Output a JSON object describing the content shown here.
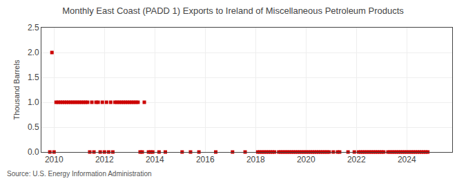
{
  "chart_data": {
    "type": "scatter",
    "title": "Monthly East Coast (PADD 1) Exports to Ireland of Miscellaneous Petroleum Products",
    "ylabel": "Thousand Barrels",
    "annotations": [
      "Source: U.S. Energy Information Administration"
    ],
    "color": "#cc0000",
    "marker": "square",
    "grid": true,
    "xlim": [
      2009.5,
      2025.8
    ],
    "xticks": [
      2010,
      2012,
      2014,
      2016,
      2018,
      2020,
      2022,
      2024
    ],
    "ylim": [
      0,
      2.5
    ],
    "yticks": [
      {
        "value": 0.0,
        "label": "0.0"
      },
      0.5,
      {
        "value": 1.0,
        "label": "1.0"
      },
      1.5,
      {
        "value": 2.0,
        "label": "2.0"
      },
      2.5
    ],
    "x": [
      2009.917,
      2010.083,
      2010.167,
      2010.25,
      2010.333,
      2010.417,
      2010.5,
      2010.583,
      2010.667,
      2010.75,
      2010.833,
      2010.917,
      2011.0,
      2011.083,
      2011.167,
      2011.25,
      2011.333,
      2011.5,
      2011.667,
      2011.75,
      2011.917,
      2012.083,
      2012.25,
      2012.417,
      2012.5,
      2012.583,
      2012.667,
      2012.75,
      2012.833,
      2012.917,
      2013.0,
      2013.083,
      2013.167,
      2013.25,
      2013.333,
      2013.583,
      2009.833,
      2010.0,
      2011.417,
      2011.583,
      2011.833,
      2012.0,
      2012.167,
      2012.333,
      2013.417,
      2013.5,
      2013.75,
      2013.833,
      2013.917,
      2014.167,
      2014.417,
      2015.083,
      2015.417,
      2015.75,
      2016.417,
      2017.083,
      2017.583,
      2018.083,
      2018.167,
      2018.25,
      2018.333,
      2018.417,
      2018.5,
      2018.583,
      2018.667,
      2018.75,
      2018.917,
      2019.0,
      2019.083,
      2019.167,
      2019.25,
      2019.333,
      2019.417,
      2019.5,
      2019.583,
      2019.667,
      2019.75,
      2019.833,
      2019.917,
      2020.0,
      2020.083,
      2020.167,
      2020.25,
      2020.333,
      2020.417,
      2020.5,
      2020.583,
      2020.667,
      2020.75,
      2020.833,
      2020.917,
      2021.083,
      2021.25,
      2021.333,
      2021.667,
      2021.917,
      2022.083,
      2022.167,
      2022.25,
      2022.333,
      2022.417,
      2022.5,
      2022.583,
      2022.667,
      2022.75,
      2022.833,
      2022.917,
      2023.0,
      2023.083,
      2023.25,
      2023.333,
      2023.417,
      2023.5,
      2023.583,
      2023.667,
      2023.75,
      2023.833,
      2023.917,
      2024.0,
      2024.083,
      2024.167,
      2024.25,
      2024.333,
      2024.417,
      2024.5,
      2024.583,
      2024.667,
      2024.75,
      2024.833
    ],
    "values": [
      2.0,
      1.0,
      1.0,
      1.0,
      1.0,
      1.0,
      1.0,
      1.0,
      1.0,
      1.0,
      1.0,
      1.0,
      1.0,
      1.0,
      1.0,
      1.0,
      1.0,
      1.0,
      1.0,
      1.0,
      1.0,
      1.0,
      1.0,
      1.0,
      1.0,
      1.0,
      1.0,
      1.0,
      1.0,
      1.0,
      1.0,
      1.0,
      1.0,
      1.0,
      1.0,
      1.0,
      0.0,
      0.0,
      0.0,
      0.0,
      0.0,
      0.0,
      0.0,
      0.0,
      0.0,
      0.0,
      0.0,
      0.0,
      0.0,
      0.0,
      0.0,
      0.0,
      0.0,
      0.0,
      0.0,
      0.0,
      0.0,
      0.0,
      0.0,
      0.0,
      0.0,
      0.0,
      0.0,
      0.0,
      0.0,
      0.0,
      0.0,
      0.0,
      0.0,
      0.0,
      0.0,
      0.0,
      0.0,
      0.0,
      0.0,
      0.0,
      0.0,
      0.0,
      0.0,
      0.0,
      0.0,
      0.0,
      0.0,
      0.0,
      0.0,
      0.0,
      0.0,
      0.0,
      0.0,
      0.0,
      0.0,
      0.0,
      0.0,
      0.0,
      0.0,
      0.0,
      0.0,
      0.0,
      0.0,
      0.0,
      0.0,
      0.0,
      0.0,
      0.0,
      0.0,
      0.0,
      0.0,
      0.0,
      0.0,
      0.0,
      0.0,
      0.0,
      0.0,
      0.0,
      0.0,
      0.0,
      0.0,
      0.0,
      0.0,
      0.0,
      0.0,
      0.0,
      0.0,
      0.0,
      0.0,
      0.0,
      0.0,
      0.0,
      0.0
    ]
  }
}
